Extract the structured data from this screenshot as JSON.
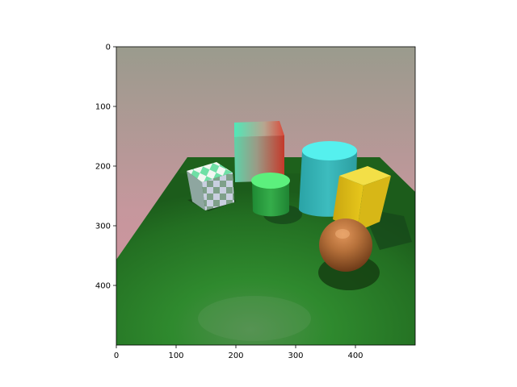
{
  "axes": {
    "x_ticks": [
      {
        "value": 0,
        "label": "0"
      },
      {
        "value": 100,
        "label": "100"
      },
      {
        "value": 200,
        "label": "200"
      },
      {
        "value": 300,
        "label": "300"
      },
      {
        "value": 400,
        "label": "400"
      }
    ],
    "y_ticks": [
      {
        "value": 0,
        "label": "0"
      },
      {
        "value": 100,
        "label": "100"
      },
      {
        "value": 200,
        "label": "200"
      },
      {
        "value": 300,
        "label": "300"
      },
      {
        "value": 400,
        "label": "400"
      }
    ],
    "x_range": [
      0,
      500
    ],
    "y_range": [
      0,
      500
    ],
    "y_inverted": true
  },
  "scene": {
    "objects": [
      "checkered-cube",
      "gradient-cube",
      "green-cylinder",
      "cyan-cylinder",
      "yellow-cube",
      "copper-sphere",
      "green-floor"
    ],
    "colors": {
      "sky_top": "#9b9b8e",
      "sky_bottom": "#d496a3",
      "floor": "#2f7d2a",
      "floor_dark": "#1d5a1a",
      "cyan": "#3fc2c4",
      "green_cylinder": "#35a84a",
      "yellow": "#e2c31c",
      "copper": "#b26a36"
    }
  }
}
